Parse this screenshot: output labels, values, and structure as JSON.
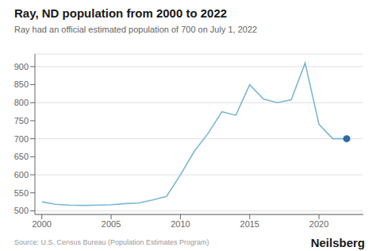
{
  "chart_data": {
    "type": "line",
    "title": "Ray, ND population from 2000 to 2022",
    "subtitle": "Ray had an official estimated population of 700 on July 1, 2022",
    "annotations": [
      "Source: U.S. Census Bureau (Population Estimates Program)",
      "Neilsberg"
    ],
    "x": [
      2000,
      2001,
      2002,
      2003,
      2004,
      2005,
      2006,
      2007,
      2008,
      2009,
      2010,
      2011,
      2012,
      2013,
      2014,
      2015,
      2016,
      2017,
      2018,
      2019,
      2020,
      2021,
      2022
    ],
    "series": [
      {
        "type": "line",
        "color": "#7ab8d9",
        "values": [
          525,
          518,
          516,
          515,
          516,
          517,
          520,
          522,
          530,
          540,
          600,
          665,
          715,
          775,
          765,
          850,
          810,
          800,
          808,
          910,
          740,
          700,
          700
        ]
      },
      {
        "type": "scatter",
        "color": "#2e6da4",
        "values": [
          null,
          null,
          null,
          null,
          null,
          null,
          null,
          null,
          null,
          null,
          null,
          null,
          null,
          null,
          null,
          null,
          null,
          null,
          null,
          null,
          null,
          null,
          700
        ]
      }
    ],
    "xlim": [
      1999.5,
      2023.2
    ],
    "ylim": [
      490,
      935
    ],
    "xticks": [
      2000,
      2005,
      2010,
      2015,
      2020
    ],
    "yticks": [
      500,
      550,
      600,
      650,
      700,
      750,
      800,
      850,
      900
    ],
    "grid": true
  }
}
